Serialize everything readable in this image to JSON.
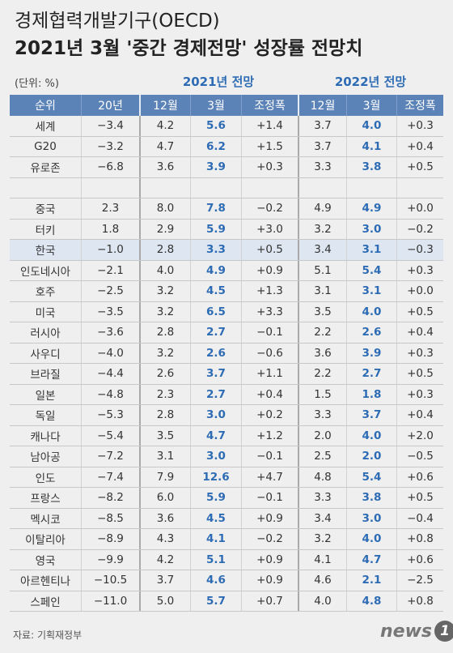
{
  "header": {
    "title_line1": "경제협력개발기구(OECD)",
    "title_line2": "2021년 3월 '중간 경제전망' 성장률 전망치"
  },
  "unit_note": "(단위: %)",
  "group_headers": [
    "2021년 전망",
    "2022년 전망"
  ],
  "columns": [
    "순위",
    "20년",
    "12월",
    "3월",
    "조정폭",
    "12월",
    "3월",
    "조정폭"
  ],
  "table": {
    "rows": [
      {
        "name": "세계",
        "values": [
          "−3.4",
          "4.2",
          "5.6",
          "+1.4",
          "3.7",
          "4.0",
          "+0.3"
        ]
      },
      {
        "name": "G20",
        "values": [
          "−3.2",
          "4.7",
          "6.2",
          "+1.5",
          "3.7",
          "4.1",
          "+0.4"
        ]
      },
      {
        "name": "유로존",
        "values": [
          "−6.8",
          "3.6",
          "3.9",
          "+0.3",
          "3.3",
          "3.8",
          "+0.5"
        ]
      },
      {
        "name": "중국",
        "values": [
          "2.3",
          "8.0",
          "7.8",
          "−0.2",
          "4.9",
          "4.9",
          "+0.0"
        ]
      },
      {
        "name": "터키",
        "values": [
          "1.8",
          "2.9",
          "5.9",
          "+3.0",
          "3.2",
          "3.0",
          "−0.2"
        ]
      },
      {
        "name": "한국",
        "values": [
          "−1.0",
          "2.8",
          "3.3",
          "+0.5",
          "3.4",
          "3.1",
          "−0.3"
        ]
      },
      {
        "name": "인도네시아",
        "values": [
          "−2.1",
          "4.0",
          "4.9",
          "+0.9",
          "5.1",
          "5.4",
          "+0.3"
        ]
      },
      {
        "name": "호주",
        "values": [
          "−2.5",
          "3.2",
          "4.5",
          "+1.3",
          "3.1",
          "3.1",
          "+0.0"
        ]
      },
      {
        "name": "미국",
        "values": [
          "−3.5",
          "3.2",
          "6.5",
          "+3.3",
          "3.5",
          "4.0",
          "+0.5"
        ]
      },
      {
        "name": "러시아",
        "values": [
          "−3.6",
          "2.8",
          "2.7",
          "−0.1",
          "2.2",
          "2.6",
          "+0.4"
        ]
      },
      {
        "name": "사우디",
        "values": [
          "−4.0",
          "3.2",
          "2.6",
          "−0.6",
          "3.6",
          "3.9",
          "+0.3"
        ]
      },
      {
        "name": "브라질",
        "values": [
          "−4.4",
          "2.6",
          "3.7",
          "+1.1",
          "2.2",
          "2.7",
          "+0.5"
        ]
      },
      {
        "name": "일본",
        "values": [
          "−4.8",
          "2.3",
          "2.7",
          "+0.4",
          "1.5",
          "1.8",
          "+0.3"
        ]
      },
      {
        "name": "독일",
        "values": [
          "−5.3",
          "2.8",
          "3.0",
          "+0.2",
          "3.3",
          "3.7",
          "+0.4"
        ]
      },
      {
        "name": "캐나다",
        "values": [
          "−5.4",
          "3.5",
          "4.7",
          "+1.2",
          "2.0",
          "4.0",
          "+2.0"
        ]
      },
      {
        "name": "남아공",
        "values": [
          "−7.2",
          "3.1",
          "3.0",
          "−0.1",
          "2.5",
          "2.0",
          "−0.5"
        ]
      },
      {
        "name": "인도",
        "values": [
          "−7.4",
          "7.9",
          "12.6",
          "+4.7",
          "4.8",
          "5.4",
          "+0.6"
        ]
      },
      {
        "name": "프랑스",
        "values": [
          "−8.2",
          "6.0",
          "5.9",
          "−0.1",
          "3.3",
          "3.8",
          "+0.5"
        ]
      },
      {
        "name": "멕시코",
        "values": [
          "−8.5",
          "3.6",
          "4.5",
          "+0.9",
          "3.4",
          "3.0",
          "−0.4"
        ]
      },
      {
        "name": "이탈리아",
        "values": [
          "−8.9",
          "4.3",
          "4.1",
          "−0.2",
          "3.2",
          "4.0",
          "+0.8"
        ]
      },
      {
        "name": "영국",
        "values": [
          "−9.9",
          "4.2",
          "5.1",
          "+0.9",
          "4.1",
          "4.7",
          "+0.6"
        ]
      },
      {
        "name": "아르헨티나",
        "values": [
          "−10.5",
          "3.7",
          "4.6",
          "+0.9",
          "4.6",
          "2.1",
          "−2.5"
        ]
      },
      {
        "name": "스페인",
        "values": [
          "−11.0",
          "5.0",
          "5.7",
          "+0.7",
          "4.0",
          "4.8",
          "+0.8"
        ]
      }
    ]
  },
  "source": "자료: 기획재정부",
  "logo": {
    "text": "news",
    "mark": "1"
  }
}
